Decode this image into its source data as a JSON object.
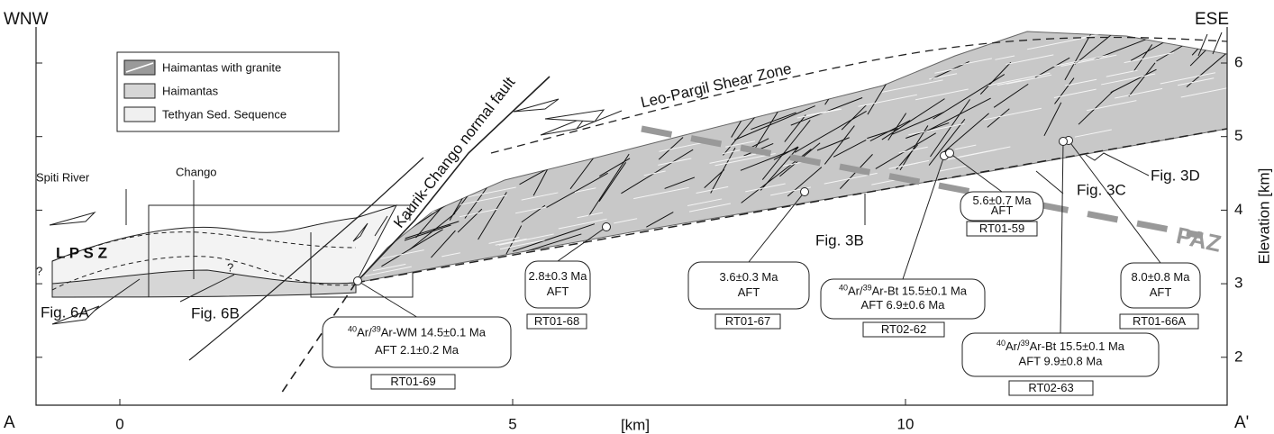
{
  "header": {
    "left": "WNW",
    "right": "ESE",
    "section_start": "A",
    "section_end": "A'"
  },
  "legend": [
    "Haimantas with granite",
    "Haimantas",
    "Tethyan Sed. Sequence"
  ],
  "x_axis": {
    "label": "[km]",
    "ticks": [
      0,
      5,
      10
    ]
  },
  "y_axis": {
    "label": "Elevation [km]",
    "ticks": [
      2,
      3,
      4,
      5,
      6
    ]
  },
  "features": {
    "shear_zone": "Leo-Pargil Shear Zone",
    "fault": "Kaurik-Chango normal fault",
    "river": "Spiti River",
    "village": "Chango",
    "lpsz": "L P S Z",
    "paz": "PAZ",
    "queries": [
      "?",
      "?"
    ]
  },
  "figure_refs": [
    "Fig. 6A",
    "Fig. 6B",
    "Fig. 3B",
    "Fig. 3C",
    "Fig. 3D"
  ],
  "samples": [
    {
      "id": "RT01-69",
      "lines": [
        [
          "40",
          "Ar/",
          "39",
          "Ar-WM 14.5±0.1 Ma"
        ],
        "AFT 2.1±0.2 Ma"
      ]
    },
    {
      "id": "RT01-68",
      "lines": [
        "2.8±0.3 Ma",
        "AFT"
      ]
    },
    {
      "id": "RT01-67",
      "lines": [
        "3.6±0.3 Ma",
        "AFT"
      ]
    },
    {
      "id": "RT02-62",
      "lines": [
        [
          "40",
          "Ar/",
          "39",
          "Ar-Bt 15.5±0.1 Ma"
        ],
        "AFT 6.9±0.6 Ma"
      ]
    },
    {
      "id": "RT01-59",
      "lines": [
        "5.6±0.7 Ma",
        "AFT"
      ]
    },
    {
      "id": "RT01-66A",
      "lines": [
        "8.0±0.8 Ma",
        "AFT"
      ]
    },
    {
      "id": "RT02-63",
      "lines": [
        [
          "40",
          "Ar/",
          "39",
          "Ar-Bt 15.5±0.1 Ma"
        ],
        "AFT 9.9±0.8 Ma"
      ]
    }
  ]
}
